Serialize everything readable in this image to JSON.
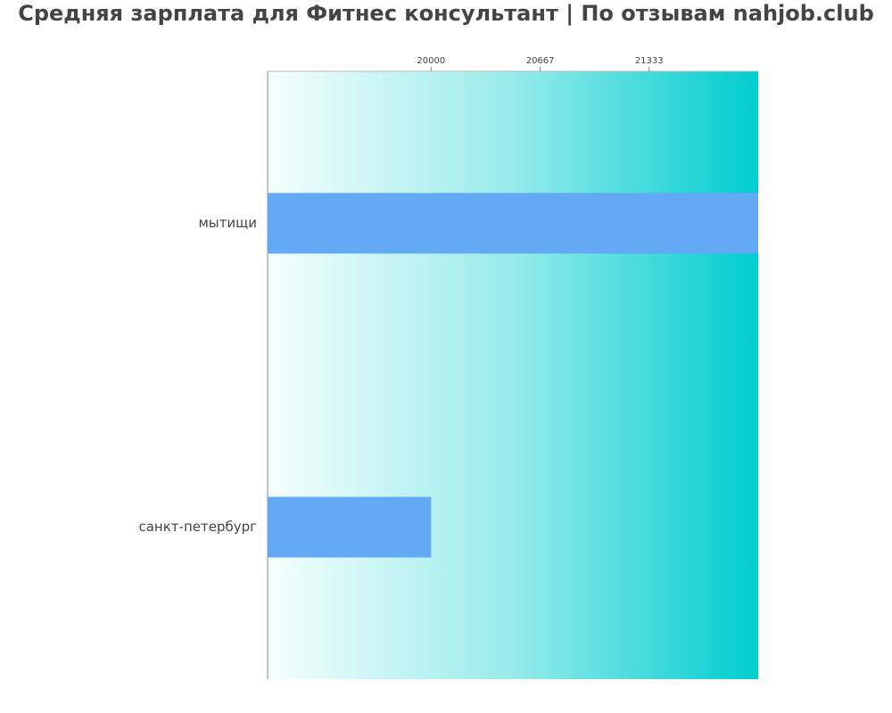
{
  "chart_data": {
    "type": "barh",
    "title": "Средняя зарплата для Фитнес консультант | По отзывам nahjob.club",
    "categories": [
      "мытищи",
      "санкт-петербург"
    ],
    "values": [
      22000,
      20000
    ],
    "color": "#63a9f3",
    "xlim": [
      19000,
      22000
    ],
    "xticks": [
      20000,
      20667,
      21333
    ]
  }
}
